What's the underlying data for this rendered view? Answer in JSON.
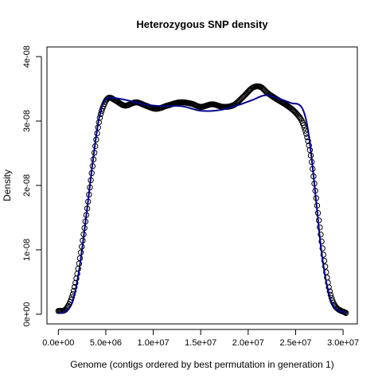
{
  "chart_data": {
    "type": "line",
    "title": "Heterozygous SNP density",
    "xlabel": "Genome (contigs ordered by best permutation in generation 1)",
    "ylabel": "Density",
    "xlim": [
      -1200000,
      31500000
    ],
    "ylim": [
      -1.5e-09,
      4.15e-08
    ],
    "x_ticks": [
      0,
      5000000,
      10000000,
      15000000,
      20000000,
      25000000,
      30000000
    ],
    "x_tick_labels": [
      "0.0e+00",
      "5.0e+06",
      "1.0e+07",
      "1.5e+07",
      "2.0e+07",
      "2.5e+07",
      "3.0e+07"
    ],
    "y_ticks": [
      0,
      1e-08,
      2e-08,
      3e-08,
      4e-08
    ],
    "y_tick_labels": [
      "0e+00",
      "1e-08",
      "2e-08",
      "3e-08",
      "4e-08"
    ],
    "grid": false,
    "series": [
      {
        "style": "points",
        "marker": "open-circle",
        "color": "#000000",
        "x_range": [
          0,
          30300000
        ],
        "keypoints": [
          [
            0,
            5e-10
          ],
          [
            800000,
            8e-10
          ],
          [
            1500000,
            3e-09
          ],
          [
            2200000,
            8e-09
          ],
          [
            3000000,
            1.6e-08
          ],
          [
            3700000,
            2.4e-08
          ],
          [
            4300000,
            3e-08
          ],
          [
            4800000,
            3.25e-08
          ],
          [
            5300000,
            3.36e-08
          ],
          [
            6000000,
            3.32e-08
          ],
          [
            7000000,
            3.24e-08
          ],
          [
            8200000,
            3.29e-08
          ],
          [
            9200000,
            3.24e-08
          ],
          [
            10300000,
            3.19e-08
          ],
          [
            11500000,
            3.24e-08
          ],
          [
            12800000,
            3.29e-08
          ],
          [
            14000000,
            3.27e-08
          ],
          [
            15000000,
            3.22e-08
          ],
          [
            16200000,
            3.26e-08
          ],
          [
            17400000,
            3.22e-08
          ],
          [
            18500000,
            3.25e-08
          ],
          [
            19500000,
            3.38e-08
          ],
          [
            20500000,
            3.52e-08
          ],
          [
            21300000,
            3.53e-08
          ],
          [
            22000000,
            3.44e-08
          ],
          [
            23000000,
            3.34e-08
          ],
          [
            24000000,
            3.25e-08
          ],
          [
            25000000,
            3.13e-08
          ],
          [
            25800000,
            2.95e-08
          ],
          [
            26500000,
            2.55e-08
          ],
          [
            27000000,
            2e-08
          ],
          [
            27500000,
            1.4e-08
          ],
          [
            28000000,
            8.5e-09
          ],
          [
            28600000,
            3.5e-09
          ],
          [
            29200000,
            1.2e-09
          ],
          [
            30300000,
            2e-10
          ]
        ]
      },
      {
        "style": "line",
        "color": "#00008b",
        "x_range": [
          0,
          30300000
        ],
        "keypoints": [
          [
            0,
            2e-10
          ],
          [
            800000,
            5e-10
          ],
          [
            1500000,
            2e-09
          ],
          [
            2200000,
            7e-09
          ],
          [
            3000000,
            1.6e-08
          ],
          [
            3700000,
            2.45e-08
          ],
          [
            4300000,
            3.05e-08
          ],
          [
            4900000,
            3.32e-08
          ],
          [
            5500000,
            3.36e-08
          ],
          [
            7000000,
            3.33e-08
          ],
          [
            9000000,
            3.26e-08
          ],
          [
            11000000,
            3.23e-08
          ],
          [
            13000000,
            3.23e-08
          ],
          [
            15000000,
            3.16e-08
          ],
          [
            17000000,
            3.17e-08
          ],
          [
            19000000,
            3.25e-08
          ],
          [
            20500000,
            3.33e-08
          ],
          [
            21800000,
            3.4e-08
          ],
          [
            23000000,
            3.36e-08
          ],
          [
            24500000,
            3.28e-08
          ],
          [
            25600000,
            3.22e-08
          ],
          [
            26200000,
            2.95e-08
          ],
          [
            26700000,
            2.4e-08
          ],
          [
            27200000,
            1.7e-08
          ],
          [
            27700000,
            1e-08
          ],
          [
            28300000,
            4.5e-09
          ],
          [
            29000000,
            1.2e-09
          ],
          [
            30300000,
            2e-10
          ]
        ]
      }
    ]
  }
}
